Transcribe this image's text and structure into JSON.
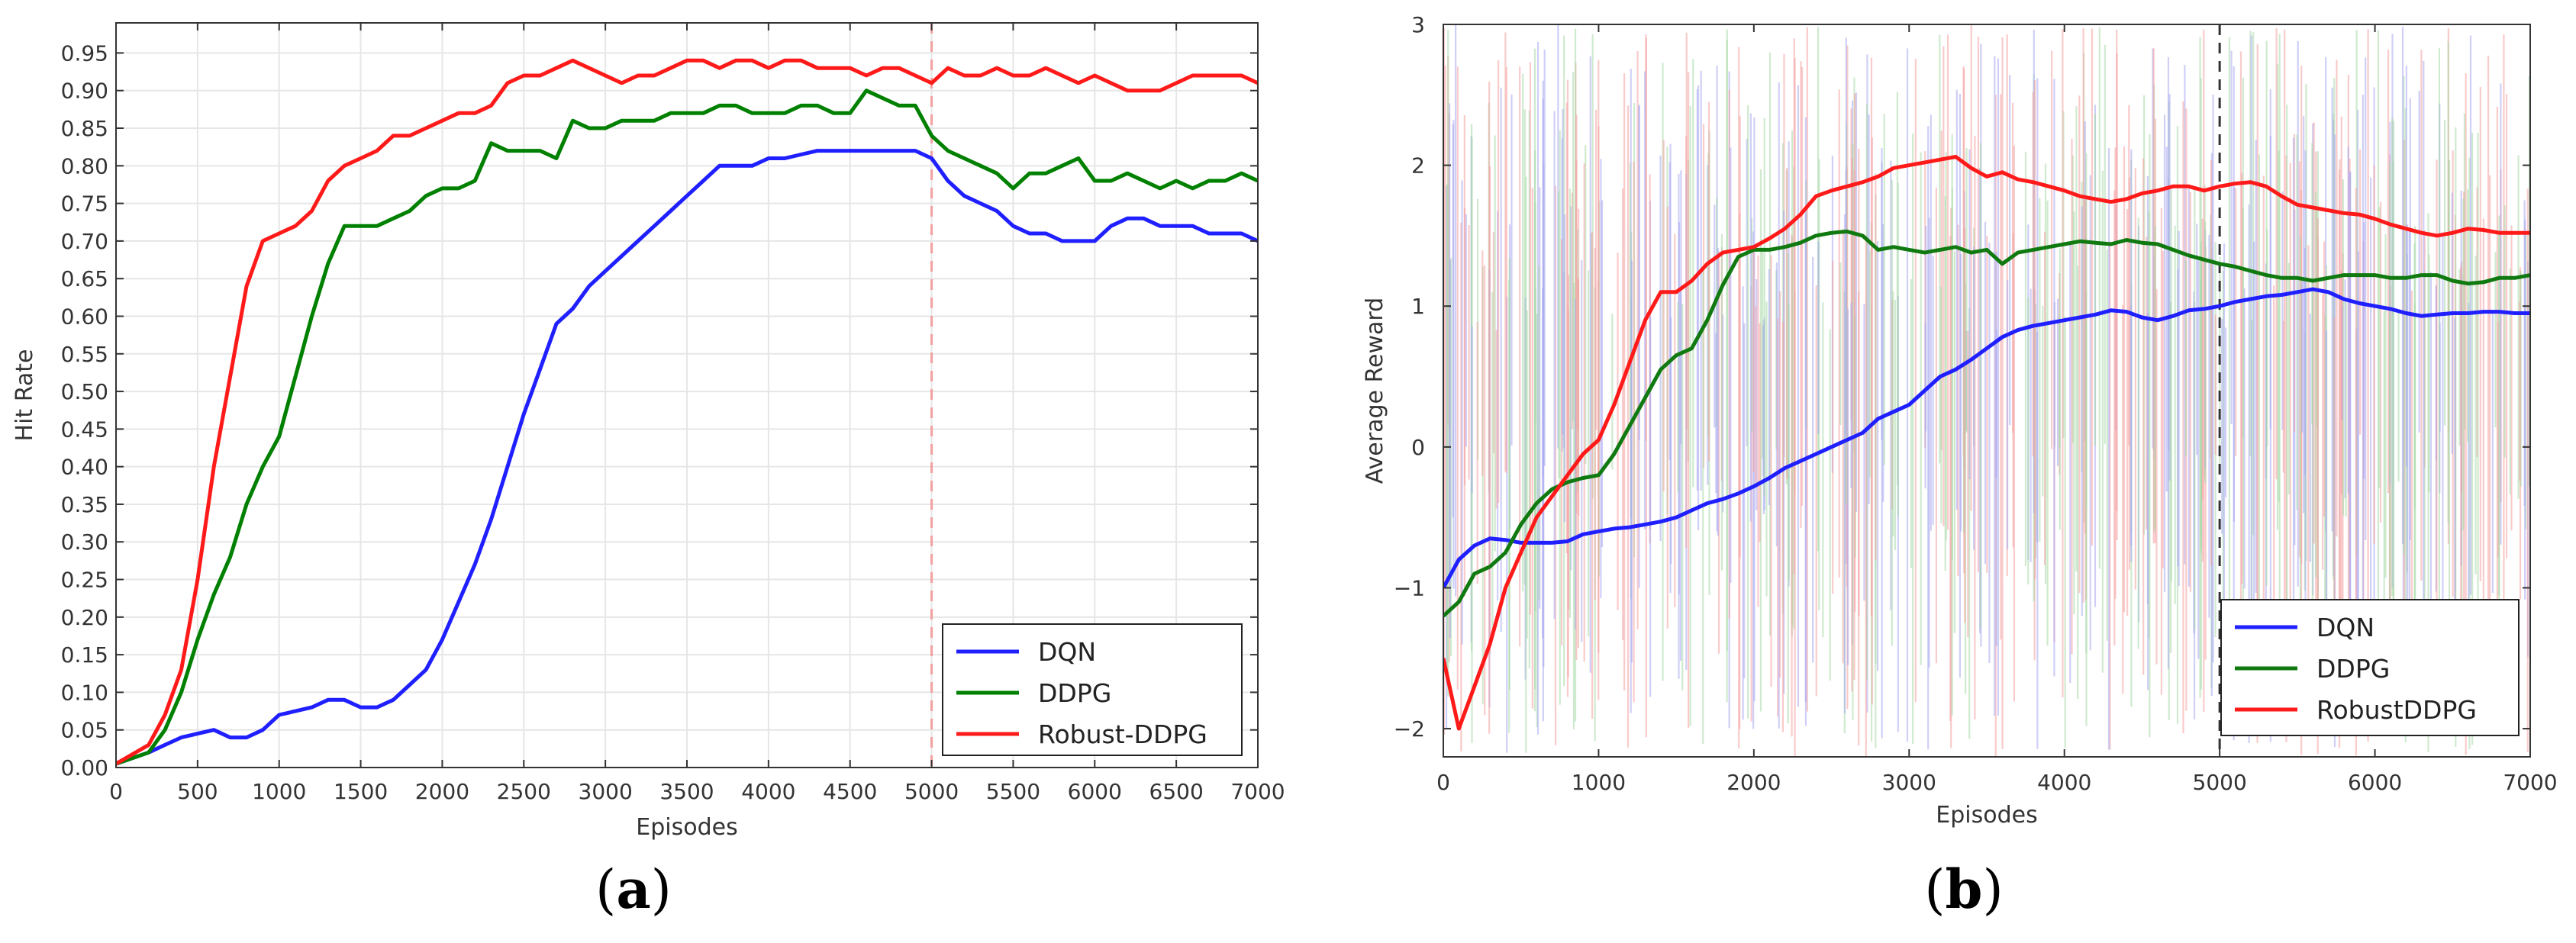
{
  "chart_data": [
    {
      "type": "line",
      "caption": {
        "open": "(",
        "letter": "a",
        "close": ")"
      },
      "title": "",
      "xlabel": "Episodes",
      "ylabel": "Hit Rate",
      "xlim": [
        0,
        7000
      ],
      "ylim": [
        0,
        0.99
      ],
      "xticks": [
        "0",
        "500",
        "1000",
        "1500",
        "2000",
        "2500",
        "3000",
        "3500",
        "4000",
        "4500",
        "5000",
        "5500",
        "6000",
        "6500",
        "7000"
      ],
      "yticks": [
        "0.00",
        "0.05",
        "0.10",
        "0.15",
        "0.20",
        "0.25",
        "0.30",
        "0.35",
        "0.40",
        "0.45",
        "0.50",
        "0.55",
        "0.60",
        "0.65",
        "0.70",
        "0.75",
        "0.80",
        "0.85",
        "0.90",
        "0.95"
      ],
      "grid": true,
      "vline": {
        "x": 5000,
        "style": "dashed",
        "color": "#f2a0a0"
      },
      "legend_position": "bottom-right",
      "series": [
        {
          "name": "DQN",
          "color": "#1f1fff",
          "x": [
            0,
            200,
            300,
            400,
            500,
            600,
            700,
            800,
            900,
            1000,
            1100,
            1200,
            1300,
            1400,
            1500,
            1600,
            1700,
            1800,
            1900,
            2000,
            2100,
            2200,
            2300,
            2400,
            2500,
            2600,
            2700,
            2800,
            2900,
            3000,
            3100,
            3200,
            3300,
            3400,
            3500,
            3600,
            3700,
            3800,
            3900,
            4000,
            4100,
            4200,
            4300,
            4400,
            4500,
            4600,
            4700,
            4800,
            4900,
            5000,
            5100,
            5200,
            5300,
            5400,
            5500,
            5600,
            5700,
            5800,
            5900,
            6000,
            6100,
            6200,
            6300,
            6400,
            6500,
            6600,
            6700,
            6800,
            6900,
            7000
          ],
          "y": [
            0.005,
            0.02,
            0.03,
            0.04,
            0.045,
            0.05,
            0.04,
            0.04,
            0.05,
            0.07,
            0.075,
            0.08,
            0.09,
            0.09,
            0.08,
            0.08,
            0.09,
            0.11,
            0.13,
            0.17,
            0.22,
            0.27,
            0.33,
            0.4,
            0.47,
            0.53,
            0.59,
            0.61,
            0.64,
            0.66,
            0.68,
            0.7,
            0.72,
            0.74,
            0.76,
            0.78,
            0.8,
            0.8,
            0.8,
            0.81,
            0.81,
            0.815,
            0.82,
            0.82,
            0.82,
            0.82,
            0.82,
            0.82,
            0.82,
            0.81,
            0.78,
            0.76,
            0.75,
            0.74,
            0.72,
            0.71,
            0.71,
            0.7,
            0.7,
            0.7,
            0.72,
            0.73,
            0.73,
            0.72,
            0.72,
            0.72,
            0.71,
            0.71,
            0.71,
            0.7
          ]
        },
        {
          "name": "DDPG",
          "color": "#008000",
          "x": [
            0,
            200,
            300,
            400,
            500,
            600,
            700,
            800,
            900,
            1000,
            1100,
            1200,
            1300,
            1400,
            1500,
            1600,
            1700,
            1800,
            1900,
            2000,
            2100,
            2200,
            2300,
            2400,
            2500,
            2600,
            2700,
            2800,
            2900,
            3000,
            3100,
            3200,
            3300,
            3400,
            3500,
            3600,
            3700,
            3800,
            3900,
            4000,
            4100,
            4200,
            4300,
            4400,
            4500,
            4600,
            4700,
            4800,
            4900,
            5000,
            5100,
            5200,
            5300,
            5400,
            5500,
            5600,
            5700,
            5800,
            5900,
            6000,
            6100,
            6200,
            6300,
            6400,
            6500,
            6600,
            6700,
            6800,
            6900,
            7000
          ],
          "y": [
            0.005,
            0.02,
            0.05,
            0.1,
            0.17,
            0.23,
            0.28,
            0.35,
            0.4,
            0.44,
            0.52,
            0.6,
            0.67,
            0.72,
            0.72,
            0.72,
            0.73,
            0.74,
            0.76,
            0.77,
            0.77,
            0.78,
            0.83,
            0.82,
            0.82,
            0.82,
            0.81,
            0.86,
            0.85,
            0.85,
            0.86,
            0.86,
            0.86,
            0.87,
            0.87,
            0.87,
            0.88,
            0.88,
            0.87,
            0.87,
            0.87,
            0.88,
            0.88,
            0.87,
            0.87,
            0.9,
            0.89,
            0.88,
            0.88,
            0.84,
            0.82,
            0.81,
            0.8,
            0.79,
            0.77,
            0.79,
            0.79,
            0.8,
            0.81,
            0.78,
            0.78,
            0.79,
            0.78,
            0.77,
            0.78,
            0.77,
            0.78,
            0.78,
            0.79,
            0.78
          ]
        },
        {
          "name": "Robust-DDPG",
          "color": "#ff1a1a",
          "x": [
            0,
            200,
            300,
            400,
            500,
            600,
            700,
            800,
            900,
            1000,
            1100,
            1200,
            1300,
            1400,
            1500,
            1600,
            1700,
            1800,
            1900,
            2000,
            2100,
            2200,
            2300,
            2400,
            2500,
            2600,
            2700,
            2800,
            2900,
            3000,
            3100,
            3200,
            3300,
            3400,
            3500,
            3600,
            3700,
            3800,
            3900,
            4000,
            4100,
            4200,
            4300,
            4400,
            4500,
            4600,
            4700,
            4800,
            4900,
            5000,
            5100,
            5200,
            5300,
            5400,
            5500,
            5600,
            5700,
            5800,
            5900,
            6000,
            6100,
            6200,
            6300,
            6400,
            6500,
            6600,
            6700,
            6800,
            6900,
            7000
          ],
          "y": [
            0.005,
            0.03,
            0.07,
            0.13,
            0.25,
            0.4,
            0.52,
            0.64,
            0.7,
            0.71,
            0.72,
            0.74,
            0.78,
            0.8,
            0.81,
            0.82,
            0.84,
            0.84,
            0.85,
            0.86,
            0.87,
            0.87,
            0.88,
            0.91,
            0.92,
            0.92,
            0.93,
            0.94,
            0.93,
            0.92,
            0.91,
            0.92,
            0.92,
            0.93,
            0.94,
            0.94,
            0.93,
            0.94,
            0.94,
            0.93,
            0.94,
            0.94,
            0.93,
            0.93,
            0.93,
            0.92,
            0.93,
            0.93,
            0.92,
            0.91,
            0.93,
            0.92,
            0.92,
            0.93,
            0.92,
            0.92,
            0.93,
            0.92,
            0.91,
            0.92,
            0.91,
            0.9,
            0.9,
            0.9,
            0.91,
            0.92,
            0.92,
            0.92,
            0.92,
            0.91
          ]
        }
      ]
    },
    {
      "type": "line",
      "caption": {
        "open": "(",
        "letter": "b",
        "close": ")"
      },
      "title": "",
      "xlabel": "Episodes",
      "ylabel": "Average Reward",
      "xlim": [
        0,
        7000
      ],
      "ylim": [
        -2.2,
        3
      ],
      "xticks": [
        "0",
        "1000",
        "2000",
        "3000",
        "4000",
        "5000",
        "6000",
        "7000"
      ],
      "yticks": [
        "−2",
        "−1",
        "0",
        "1",
        "2",
        "3"
      ],
      "grid": false,
      "vline": {
        "x": 5000,
        "style": "dashed",
        "color": "#333333"
      },
      "noise_band": {
        "description": "dense high-variance per-episode reward traces",
        "colors": [
          "#f4a0a0",
          "#a8d8a8",
          "#a8a8f0"
        ]
      },
      "legend_position": "bottom-right",
      "series": [
        {
          "name": "DQN",
          "color": "#1f1fff",
          "x": [
            0,
            100,
            200,
            300,
            400,
            500,
            600,
            700,
            800,
            900,
            1000,
            1100,
            1200,
            1300,
            1400,
            1500,
            1600,
            1700,
            1800,
            1900,
            2000,
            2100,
            2200,
            2300,
            2400,
            2500,
            2600,
            2700,
            2800,
            2900,
            3000,
            3100,
            3200,
            3300,
            3400,
            3500,
            3600,
            3700,
            3800,
            3900,
            4000,
            4100,
            4200,
            4300,
            4400,
            4500,
            4600,
            4700,
            4800,
            4900,
            5000,
            5100,
            5200,
            5300,
            5400,
            5500,
            5600,
            5700,
            5800,
            5900,
            6000,
            6100,
            6200,
            6300,
            6400,
            6500,
            6600,
            6700,
            6800,
            6900,
            7000
          ],
          "y": [
            -1.0,
            -0.8,
            -0.7,
            -0.65,
            -0.66,
            -0.68,
            -0.68,
            -0.68,
            -0.67,
            -0.62,
            -0.6,
            -0.58,
            -0.57,
            -0.55,
            -0.53,
            -0.5,
            -0.45,
            -0.4,
            -0.37,
            -0.33,
            -0.28,
            -0.22,
            -0.15,
            -0.1,
            -0.05,
            0.0,
            0.05,
            0.1,
            0.2,
            0.25,
            0.3,
            0.4,
            0.5,
            0.55,
            0.62,
            0.7,
            0.78,
            0.83,
            0.86,
            0.88,
            0.9,
            0.92,
            0.94,
            0.97,
            0.96,
            0.92,
            0.9,
            0.93,
            0.97,
            0.98,
            1.0,
            1.03,
            1.05,
            1.07,
            1.08,
            1.1,
            1.12,
            1.1,
            1.05,
            1.02,
            1.0,
            0.98,
            0.95,
            0.93,
            0.94,
            0.95,
            0.95,
            0.96,
            0.96,
            0.95,
            0.95
          ]
        },
        {
          "name": "DDPG",
          "color": "#107a10",
          "x": [
            0,
            100,
            200,
            300,
            400,
            500,
            600,
            700,
            800,
            900,
            1000,
            1100,
            1200,
            1300,
            1400,
            1500,
            1600,
            1700,
            1800,
            1900,
            2000,
            2100,
            2200,
            2300,
            2400,
            2500,
            2600,
            2700,
            2800,
            2900,
            3000,
            3100,
            3200,
            3300,
            3400,
            3500,
            3600,
            3700,
            3800,
            3900,
            4000,
            4100,
            4200,
            4300,
            4400,
            4500,
            4600,
            4700,
            4800,
            4900,
            5000,
            5100,
            5200,
            5300,
            5400,
            5500,
            5600,
            5700,
            5800,
            5900,
            6000,
            6100,
            6200,
            6300,
            6400,
            6500,
            6600,
            6700,
            6800,
            6900,
            7000
          ],
          "y": [
            -1.2,
            -1.1,
            -0.9,
            -0.85,
            -0.75,
            -0.55,
            -0.4,
            -0.3,
            -0.25,
            -0.22,
            -0.2,
            -0.05,
            0.15,
            0.35,
            0.55,
            0.65,
            0.7,
            0.9,
            1.15,
            1.35,
            1.4,
            1.4,
            1.42,
            1.45,
            1.5,
            1.52,
            1.53,
            1.5,
            1.4,
            1.42,
            1.4,
            1.38,
            1.4,
            1.42,
            1.38,
            1.4,
            1.3,
            1.38,
            1.4,
            1.42,
            1.44,
            1.46,
            1.45,
            1.44,
            1.47,
            1.45,
            1.44,
            1.4,
            1.36,
            1.33,
            1.3,
            1.28,
            1.25,
            1.22,
            1.2,
            1.2,
            1.18,
            1.2,
            1.22,
            1.22,
            1.22,
            1.2,
            1.2,
            1.22,
            1.22,
            1.18,
            1.16,
            1.17,
            1.2,
            1.2,
            1.22
          ]
        },
        {
          "name": "RobustDDPG",
          "color": "#ff1a1a",
          "x": [
            0,
            100,
            200,
            300,
            400,
            500,
            600,
            700,
            800,
            900,
            1000,
            1100,
            1200,
            1300,
            1400,
            1500,
            1600,
            1700,
            1800,
            1900,
            2000,
            2100,
            2200,
            2300,
            2400,
            2500,
            2600,
            2700,
            2800,
            2900,
            3000,
            3100,
            3200,
            3300,
            3400,
            3500,
            3600,
            3700,
            3800,
            3900,
            4000,
            4100,
            4200,
            4300,
            4400,
            4500,
            4600,
            4700,
            4800,
            4900,
            5000,
            5100,
            5200,
            5300,
            5400,
            5500,
            5600,
            5700,
            5800,
            5900,
            6000,
            6100,
            6200,
            6300,
            6400,
            6500,
            6600,
            6700,
            6800,
            6900,
            7000
          ],
          "y": [
            -1.5,
            -2.0,
            -1.7,
            -1.4,
            -1.0,
            -0.75,
            -0.5,
            -0.35,
            -0.2,
            -0.05,
            0.05,
            0.3,
            0.6,
            0.9,
            1.1,
            1.1,
            1.18,
            1.3,
            1.38,
            1.4,
            1.42,
            1.48,
            1.55,
            1.65,
            1.78,
            1.82,
            1.85,
            1.88,
            1.92,
            1.98,
            2.0,
            2.02,
            2.04,
            2.06,
            1.98,
            1.92,
            1.95,
            1.9,
            1.88,
            1.85,
            1.82,
            1.78,
            1.76,
            1.74,
            1.76,
            1.8,
            1.82,
            1.85,
            1.85,
            1.82,
            1.85,
            1.87,
            1.88,
            1.85,
            1.78,
            1.72,
            1.7,
            1.68,
            1.66,
            1.65,
            1.62,
            1.58,
            1.55,
            1.52,
            1.5,
            1.52,
            1.55,
            1.54,
            1.52,
            1.52,
            1.52
          ]
        }
      ]
    }
  ]
}
